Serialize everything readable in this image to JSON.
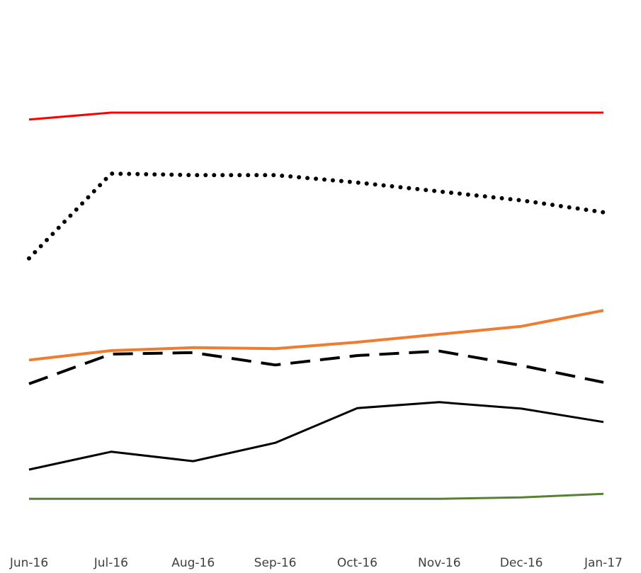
{
  "chart_data": {
    "type": "line",
    "categories": [
      "Jun-16",
      "Jul-16",
      "Aug-16",
      "Sep-16",
      "Oct-16",
      "Nov-16",
      "Dec-16",
      "Jan-17"
    ],
    "ylim": [
      0,
      100
    ],
    "series": [
      {
        "color": "#ff0000",
        "style": "solid",
        "width": 3,
        "values": [
          81.6,
          83,
          83,
          83,
          83,
          83,
          83,
          83
        ]
      },
      {
        "color": "#000000",
        "style": "dotted",
        "width": 6,
        "values": [
          53.6,
          70.7,
          70.4,
          70.4,
          68.9,
          67.1,
          65.3,
          62.9
        ]
      },
      {
        "color": "#ed7d31",
        "style": "solid",
        "width": 4,
        "values": [
          33.1,
          35,
          35.6,
          35.4,
          36.7,
          38.3,
          39.9,
          43.1
        ]
      },
      {
        "color": "#000000",
        "style": "dashed",
        "width": 4,
        "values": [
          28.3,
          34.3,
          34.6,
          32.1,
          34,
          34.9,
          32,
          28.6
        ]
      },
      {
        "color": "#000000",
        "style": "solid",
        "width": 3,
        "values": [
          11,
          14.6,
          12.7,
          16.4,
          23.4,
          24.6,
          23.3,
          20.6
        ]
      },
      {
        "color": "#548235",
        "style": "solid",
        "width": 3,
        "values": [
          5.1,
          5.1,
          5.1,
          5.1,
          5.1,
          5.1,
          5.4,
          6.1
        ]
      }
    ]
  }
}
